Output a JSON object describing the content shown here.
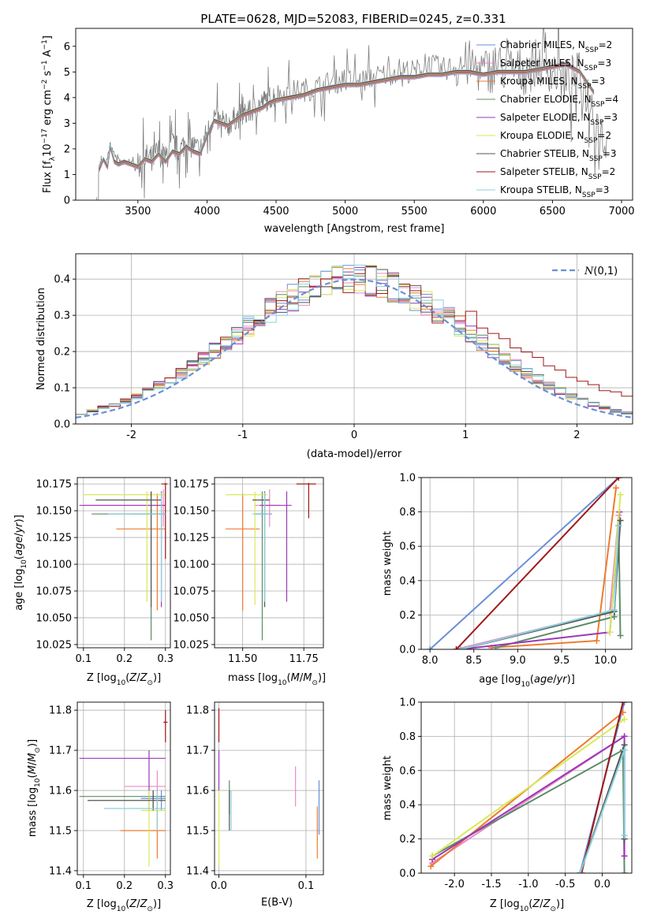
{
  "figure": {
    "title": "PLATE=0628, MJD=52083, FIBERID=0245, z=0.331"
  },
  "models": [
    {
      "name": "Chabrier MILES, N_SSP=2",
      "imf": "Chabrier",
      "lib": "MILES",
      "nssp": "2",
      "color": "#6a8fd6"
    },
    {
      "name": "Salpeter MILES, N_SSP=3",
      "imf": "Salpeter",
      "lib": "MILES",
      "nssp": "3",
      "color": "#e98bc0"
    },
    {
      "name": "Kroupa MILES, N_SSP=3",
      "imf": "Kroupa",
      "lib": "MILES",
      "nssp": "3",
      "color": "#ee7a2f"
    },
    {
      "name": "Chabrier ELODIE, N_SSP=4",
      "imf": "Chabrier",
      "lib": "ELODIE",
      "nssp": "4",
      "color": "#5c8c68"
    },
    {
      "name": "Salpeter ELODIE, N_SSP=3",
      "imf": "Salpeter",
      "lib": "ELODIE",
      "nssp": "3",
      "color": "#9b37b9"
    },
    {
      "name": "Kroupa ELODIE, N_SSP=2",
      "imf": "Kroupa",
      "lib": "ELODIE",
      "nssp": "2",
      "color": "#d8ea56"
    },
    {
      "name": "Chabrier STELIB, N_SSP=3",
      "imf": "Chabrier",
      "lib": "STELIB",
      "nssp": "3",
      "color": "#555555"
    },
    {
      "name": "Salpeter STELIB, N_SSP=2",
      "imf": "Salpeter",
      "lib": "STELIB",
      "nssp": "2",
      "color": "#a01818"
    },
    {
      "name": "Kroupa STELIB, N_SSP=3",
      "imf": "Kroupa",
      "lib": "STELIB",
      "nssp": "3",
      "color": "#8ad0dc"
    }
  ],
  "chart_data": [
    {
      "id": "spectrum",
      "type": "line",
      "xlabel": "wavelength [Angstrom, rest frame]",
      "ylabel": "Flux [f_λ 10^-17 erg cm^-2 s^-1 A^-1]",
      "xlim": [
        3050,
        7080
      ],
      "ylim": [
        0,
        6.7
      ],
      "xticks": [
        3500,
        4000,
        4500,
        5000,
        5500,
        6000,
        6500,
        7000
      ],
      "yticks": [
        0,
        1,
        2,
        3,
        4,
        5,
        6
      ],
      "grid": false,
      "legend": "top-right",
      "data_x": [
        3200,
        3220,
        3240,
        3270,
        3300,
        3350,
        3400,
        3450,
        3500,
        3550,
        3600,
        3650,
        3700,
        3750,
        3800,
        3850,
        3900,
        3950,
        4000,
        4050,
        4100,
        4150,
        4200,
        4250,
        4300,
        4350,
        4400,
        4450,
        4500,
        4600,
        4700,
        4800,
        4900,
        5000,
        5100,
        5200,
        5300,
        5400,
        5500,
        5600,
        5700,
        5800,
        5900,
        6000,
        6100,
        6200,
        6300,
        6400,
        6500,
        6600,
        6700,
        6800,
        6900
      ],
      "data_y": [
        0.2,
        1.3,
        1.6,
        1.4,
        2.2,
        1.6,
        1.4,
        1.5,
        1.3,
        1.7,
        1.6,
        1.9,
        1.6,
        2.2,
        1.9,
        2.3,
        2.1,
        1.9,
        2.6,
        3.3,
        3.0,
        2.9,
        3.2,
        3.3,
        3.4,
        3.6,
        3.8,
        4.0,
        4.1,
        4.2,
        4.3,
        4.4,
        4.6,
        4.7,
        4.6,
        4.8,
        4.9,
        5.1,
        5.0,
        5.3,
        5.1,
        5.2,
        5.3,
        5.0,
        5.2,
        5.1,
        5.0,
        5.4,
        5.1,
        4.6,
        4.9,
        3.5,
        2.0
      ],
      "model_x": [
        3220,
        3250,
        3280,
        3300,
        3330,
        3360,
        3400,
        3450,
        3500,
        3550,
        3600,
        3650,
        3700,
        3750,
        3800,
        3850,
        3900,
        3950,
        4000,
        4050,
        4100,
        4150,
        4200,
        4250,
        4300,
        4350,
        4400,
        4450,
        4500,
        4600,
        4700,
        4800,
        4900,
        5000,
        5100,
        5200,
        5300,
        5400,
        5500,
        5600,
        5700,
        5800,
        5900,
        6000,
        6100,
        6200,
        6300,
        6400,
        6500,
        6600,
        6700,
        6800
      ],
      "model_y": [
        1.2,
        1.6,
        1.3,
        2.1,
        1.5,
        1.4,
        1.5,
        1.4,
        1.3,
        1.6,
        1.5,
        1.8,
        1.5,
        1.9,
        1.8,
        2.1,
        1.9,
        1.8,
        2.5,
        3.1,
        3.0,
        2.9,
        3.1,
        3.3,
        3.4,
        3.5,
        3.6,
        3.8,
        3.9,
        4.0,
        4.1,
        4.3,
        4.4,
        4.5,
        4.5,
        4.6,
        4.7,
        4.8,
        4.8,
        4.9,
        4.9,
        5.0,
        5.0,
        4.9,
        5.0,
        5.0,
        5.0,
        5.1,
        5.2,
        5.3,
        5.0,
        4.2
      ]
    },
    {
      "id": "residuals",
      "type": "line",
      "xlabel": "(data-model)/error",
      "ylabel": "Normed distribution",
      "xlim": [
        -2.5,
        2.5
      ],
      "ylim": [
        0,
        0.47
      ],
      "xticks": [
        -2,
        -1,
        0,
        1,
        2
      ],
      "yticks": [
        0.0,
        0.1,
        0.2,
        0.3,
        0.4
      ],
      "grid": true,
      "legend": "top-right",
      "gauss_label": "N(0,1)",
      "gauss_color": "#6a8fd6"
    },
    {
      "id": "age-vs-Z",
      "type": "scatter",
      "xlabel": "Z [log10(Z/Z☉)]",
      "ylabel": "age [log10(age/yr)]",
      "xlim": [
        0.085,
        0.312
      ],
      "ylim": [
        10.022,
        10.181
      ],
      "xticks": [
        0.1,
        0.2,
        0.3
      ],
      "yticks": [
        10.025,
        10.05,
        10.075,
        10.1,
        10.125,
        10.15,
        10.175
      ],
      "grid": true,
      "points": [
        {
          "model": 0,
          "x": 0.295,
          "y": 10.147,
          "xlo": 0.22,
          "xhi": 0.3,
          "ylo": 10.145,
          "yhi": 10.149
        },
        {
          "model": 1,
          "x": 0.295,
          "y": 10.155,
          "xlo": 0.1,
          "xhi": 0.3,
          "ylo": 10.135,
          "yhi": 10.17
        },
        {
          "model": 2,
          "x": 0.28,
          "y": 10.133,
          "xlo": 0.18,
          "xhi": 0.3,
          "ylo": 10.057,
          "yhi": 10.166
        },
        {
          "model": 3,
          "x": 0.265,
          "y": 10.147,
          "xlo": 0.12,
          "xhi": 0.29,
          "ylo": 10.029,
          "yhi": 10.168
        },
        {
          "model": 4,
          "x": 0.29,
          "y": 10.155,
          "xlo": 0.09,
          "xhi": 0.3,
          "ylo": 10.06,
          "yhi": 10.168
        },
        {
          "model": 5,
          "x": 0.255,
          "y": 10.165,
          "xlo": 0.1,
          "xhi": 0.3,
          "ylo": 10.065,
          "yhi": 10.168
        },
        {
          "model": 6,
          "x": 0.265,
          "y": 10.16,
          "xlo": 0.13,
          "xhi": 0.29,
          "ylo": 10.06,
          "yhi": 10.168
        },
        {
          "model": 7,
          "x": 0.3,
          "y": 10.175,
          "xlo": 0.29,
          "xhi": 0.305,
          "ylo": 10.105,
          "yhi": 10.176
        },
        {
          "model": 8,
          "x": 0.29,
          "y": 10.147,
          "xlo": 0.16,
          "xhi": 0.3,
          "ylo": 10.065,
          "yhi": 10.167
        }
      ]
    },
    {
      "id": "age-vs-mass",
      "type": "scatter",
      "xlabel": "mass [log10(M/M☉)]",
      "ylabel": "",
      "xlim": [
        11.385,
        11.83
      ],
      "ylim": [
        10.022,
        10.181
      ],
      "xticks": [
        11.5,
        11.75
      ],
      "yticks": [
        10.025,
        10.05,
        10.075,
        10.1,
        10.125,
        10.15,
        10.175
      ],
      "grid": true,
      "points": [
        {
          "model": 0,
          "x": 11.58,
          "y": 10.147,
          "xlo": 11.55,
          "xhi": 11.62,
          "ylo": 10.145,
          "yhi": 10.149
        },
        {
          "model": 1,
          "x": 11.61,
          "y": 10.155,
          "xlo": 11.55,
          "xhi": 11.65,
          "ylo": 10.135,
          "yhi": 10.17
        },
        {
          "model": 2,
          "x": 11.5,
          "y": 10.133,
          "xlo": 11.43,
          "xhi": 11.57,
          "ylo": 10.057,
          "yhi": 10.166
        },
        {
          "model": 3,
          "x": 11.58,
          "y": 10.147,
          "xlo": 11.55,
          "xhi": 11.6,
          "ylo": 10.029,
          "yhi": 10.168
        },
        {
          "model": 4,
          "x": 11.68,
          "y": 10.155,
          "xlo": 11.57,
          "xhi": 11.7,
          "ylo": 10.065,
          "yhi": 10.168
        },
        {
          "model": 5,
          "x": 11.55,
          "y": 10.165,
          "xlo": 11.43,
          "xhi": 11.6,
          "ylo": 10.062,
          "yhi": 10.168
        },
        {
          "model": 6,
          "x": 11.59,
          "y": 10.16,
          "xlo": 11.54,
          "xhi": 11.61,
          "ylo": 10.06,
          "yhi": 10.168
        },
        {
          "model": 7,
          "x": 11.77,
          "y": 10.175,
          "xlo": 11.72,
          "xhi": 11.8,
          "ylo": 10.143,
          "yhi": 10.176
        },
        {
          "model": 8,
          "x": 11.59,
          "y": 10.147,
          "xlo": 11.54,
          "xhi": 11.61,
          "ylo": 10.065,
          "yhi": 10.167
        }
      ]
    },
    {
      "id": "massweight-vs-age",
      "type": "line",
      "xlabel": "age [log10(age/yr)]",
      "ylabel": "mass weight",
      "xlim": [
        7.9,
        10.3
      ],
      "ylim": [
        0,
        1
      ],
      "xticks": [
        8.0,
        8.5,
        9.0,
        9.5,
        10.0
      ],
      "yticks": [
        0.0,
        0.2,
        0.4,
        0.6,
        0.8,
        1.0
      ],
      "grid": true,
      "series": [
        {
          "model": 0,
          "x": [
            8.0,
            10.15
          ],
          "y": [
            0.0,
            1.0
          ]
        },
        {
          "model": 1,
          "x": [
            8.3,
            10.05,
            10.15
          ],
          "y": [
            0.0,
            0.22,
            0.78
          ]
        },
        {
          "model": 2,
          "x": [
            8.7,
            9.9,
            10.12
          ],
          "y": [
            0.01,
            0.05,
            0.94
          ]
        },
        {
          "model": 3,
          "x": [
            8.75,
            10.1,
            10.15,
            10.17
          ],
          "y": [
            0.01,
            0.19,
            0.72,
            0.08
          ]
        },
        {
          "model": 4,
          "x": [
            8.35,
            10.05,
            10.16
          ],
          "y": [
            0.0,
            0.1,
            0.8
          ]
        },
        {
          "model": 5,
          "x": [
            10.05,
            10.17
          ],
          "y": [
            0.1,
            0.9
          ]
        },
        {
          "model": 6,
          "x": [
            8.35,
            10.1,
            10.17
          ],
          "y": [
            0.0,
            0.22,
            0.75
          ]
        },
        {
          "model": 7,
          "x": [
            8.3,
            10.15
          ],
          "y": [
            0.0,
            1.0
          ]
        },
        {
          "model": 8,
          "x": [
            8.35,
            10.1,
            10.15
          ],
          "y": [
            0.0,
            0.23,
            0.72
          ]
        }
      ]
    },
    {
      "id": "mass-vs-Z",
      "type": "scatter",
      "xlabel": "Z [log10(Z/Z☉)]",
      "ylabel": "mass [log10(M/M☉)]",
      "xlim": [
        0.085,
        0.312
      ],
      "ylim": [
        11.39,
        11.82
      ],
      "xticks": [
        0.1,
        0.2,
        0.3
      ],
      "yticks": [
        11.4,
        11.5,
        11.6,
        11.7,
        11.8
      ],
      "grid": true,
      "points": [
        {
          "model": 0,
          "x": 0.29,
          "y": 11.58,
          "xlo": 0.24,
          "xhi": 0.3,
          "ylo": 11.55,
          "yhi": 11.6
        },
        {
          "model": 1,
          "x": 0.28,
          "y": 11.61,
          "xlo": 0.2,
          "xhi": 0.3,
          "ylo": 11.55,
          "yhi": 11.65
        },
        {
          "model": 2,
          "x": 0.28,
          "y": 11.5,
          "xlo": 0.19,
          "xhi": 0.3,
          "ylo": 11.43,
          "yhi": 11.57
        },
        {
          "model": 3,
          "x": 0.27,
          "y": 11.585,
          "xlo": 0.09,
          "xhi": 0.3,
          "ylo": 11.55,
          "yhi": 11.6
        },
        {
          "model": 4,
          "x": 0.26,
          "y": 11.68,
          "xlo": 0.09,
          "xhi": 0.3,
          "ylo": 11.55,
          "yhi": 11.7
        },
        {
          "model": 5,
          "x": 0.26,
          "y": 11.55,
          "xlo": 0.24,
          "xhi": 0.3,
          "ylo": 11.41,
          "yhi": 11.6
        },
        {
          "model": 6,
          "x": 0.27,
          "y": 11.575,
          "xlo": 0.11,
          "xhi": 0.3,
          "ylo": 11.55,
          "yhi": 11.6
        },
        {
          "model": 7,
          "x": 0.3,
          "y": 11.77,
          "xlo": 0.295,
          "xhi": 0.305,
          "ylo": 11.72,
          "yhi": 11.8
        },
        {
          "model": 8,
          "x": 0.28,
          "y": 11.555,
          "xlo": 0.15,
          "xhi": 0.3,
          "ylo": 11.5,
          "yhi": 11.6
        }
      ]
    },
    {
      "id": "mass-vs-EBV",
      "type": "scatter",
      "xlabel": "E(B-V)",
      "ylabel": "",
      "xlim": [
        -0.005,
        0.12
      ],
      "ylim": [
        11.39,
        11.82
      ],
      "xticks": [
        0.0,
        0.1
      ],
      "yticks": [
        11.4,
        11.5,
        11.6,
        11.7,
        11.8
      ],
      "grid": true,
      "points": [
        {
          "model": 0,
          "x": 0.115,
          "y": 11.58,
          "ylo": 11.49,
          "yhi": 11.625
        },
        {
          "model": 1,
          "x": 0.088,
          "y": 11.61,
          "ylo": 11.56,
          "yhi": 11.66
        },
        {
          "model": 2,
          "x": 0.113,
          "y": 11.5,
          "ylo": 11.43,
          "yhi": 11.56
        },
        {
          "model": 3,
          "x": 0.012,
          "y": 11.585,
          "ylo": 11.54,
          "yhi": 11.625
        },
        {
          "model": 4,
          "x": 0.0,
          "y": 11.68,
          "ylo": 11.6,
          "yhi": 11.7
        },
        {
          "model": 5,
          "x": 0.0,
          "y": 11.55,
          "ylo": 11.41,
          "yhi": 11.6
        },
        {
          "model": 6,
          "x": 0.012,
          "y": 11.575,
          "ylo": 11.5,
          "yhi": 11.6
        },
        {
          "model": 7,
          "x": 0.0,
          "y": 11.77,
          "ylo": 11.72,
          "yhi": 11.805
        },
        {
          "model": 8,
          "x": 0.014,
          "y": 11.555,
          "ylo": 11.5,
          "yhi": 11.6
        }
      ]
    },
    {
      "id": "massweight-vs-Z",
      "type": "line",
      "xlabel": "Z [log10(Z/Z☉)]",
      "ylabel": "mass weight",
      "xlim": [
        -2.45,
        0.4
      ],
      "ylim": [
        0,
        1
      ],
      "xticks": [
        -2.0,
        -1.5,
        -1.0,
        -0.5,
        0.0
      ],
      "yticks": [
        0.0,
        0.2,
        0.4,
        0.6,
        0.8,
        1.0
      ],
      "grid": true,
      "series": [
        {
          "model": 0,
          "x": [
            -0.3,
            0.3
          ],
          "y": [
            0.0,
            1.0
          ]
        },
        {
          "model": 1,
          "x": [
            -2.3,
            0.3
          ],
          "y": [
            0.06,
            0.8
          ]
        },
        {
          "model": 2,
          "x": [
            -2.32,
            0.28
          ],
          "y": [
            0.04,
            0.94
          ]
        },
        {
          "model": 3,
          "x": [
            -2.3,
            0.28,
            0.3
          ],
          "y": [
            0.1,
            0.72,
            0.0
          ]
        },
        {
          "model": 4,
          "x": [
            -2.3,
            0.3,
            0.3
          ],
          "y": [
            0.08,
            0.8,
            0.1
          ]
        },
        {
          "model": 5,
          "x": [
            -2.3,
            0.3
          ],
          "y": [
            0.1,
            0.9
          ]
        },
        {
          "model": 6,
          "x": [
            -0.3,
            0.3,
            0.3
          ],
          "y": [
            0.0,
            0.75,
            0.2
          ]
        },
        {
          "model": 7,
          "x": [
            -0.28,
            0.28
          ],
          "y": [
            0.0,
            1.0
          ]
        },
        {
          "model": 8,
          "x": [
            -0.3,
            0.3,
            0.3
          ],
          "y": [
            0.0,
            0.72,
            0.22
          ]
        }
      ]
    }
  ]
}
